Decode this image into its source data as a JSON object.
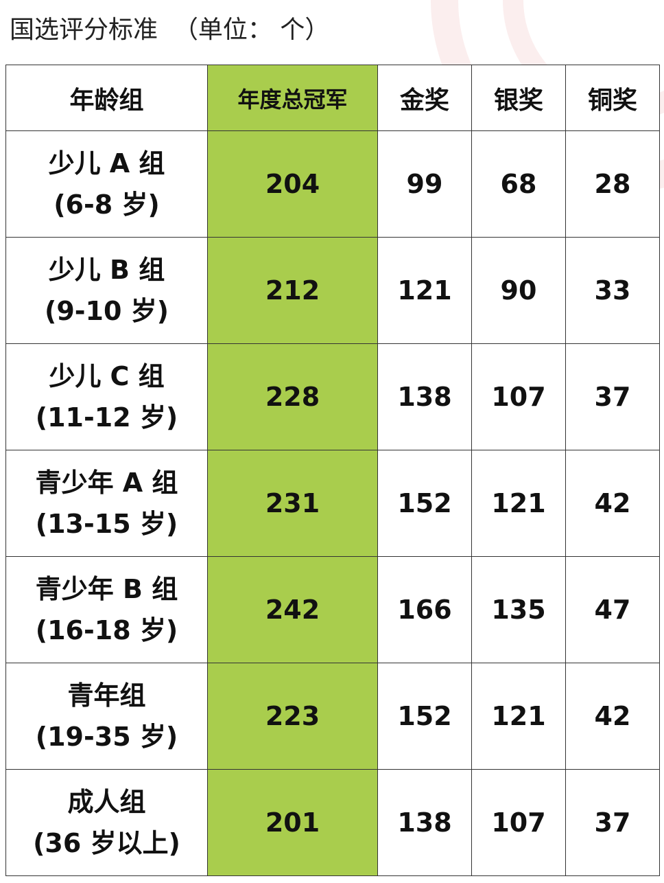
{
  "title": "国选评分标准  （单位： 个）",
  "colors": {
    "highlight": "#a9cd4d"
  },
  "table": {
    "headers": [
      "年龄组",
      "年度总冠军",
      "金奖",
      "银奖",
      "铜奖"
    ],
    "rows": [
      {
        "group": "少儿 A 组",
        "age": "(6-8 岁)",
        "champion": "204",
        "gold": "99",
        "silver": "68",
        "bronze": "28"
      },
      {
        "group": "少儿 B 组",
        "age": "(9-10 岁)",
        "champion": "212",
        "gold": "121",
        "silver": "90",
        "bronze": "33"
      },
      {
        "group": "少儿 C 组",
        "age": "(11-12 岁)",
        "champion": "228",
        "gold": "138",
        "silver": "107",
        "bronze": "37"
      },
      {
        "group": "青少年 A 组",
        "age": "(13-15 岁)",
        "champion": "231",
        "gold": "152",
        "silver": "121",
        "bronze": "42"
      },
      {
        "group": "青少年 B 组",
        "age": "(16-18 岁)",
        "champion": "242",
        "gold": "166",
        "silver": "135",
        "bronze": "47"
      },
      {
        "group": "青年组",
        "age": "(19-35 岁)",
        "champion": "223",
        "gold": "152",
        "silver": "121",
        "bronze": "42"
      },
      {
        "group": "成人组",
        "age": "(36 岁以上)",
        "champion": "201",
        "gold": "138",
        "silver": "107",
        "bronze": "37"
      }
    ]
  }
}
